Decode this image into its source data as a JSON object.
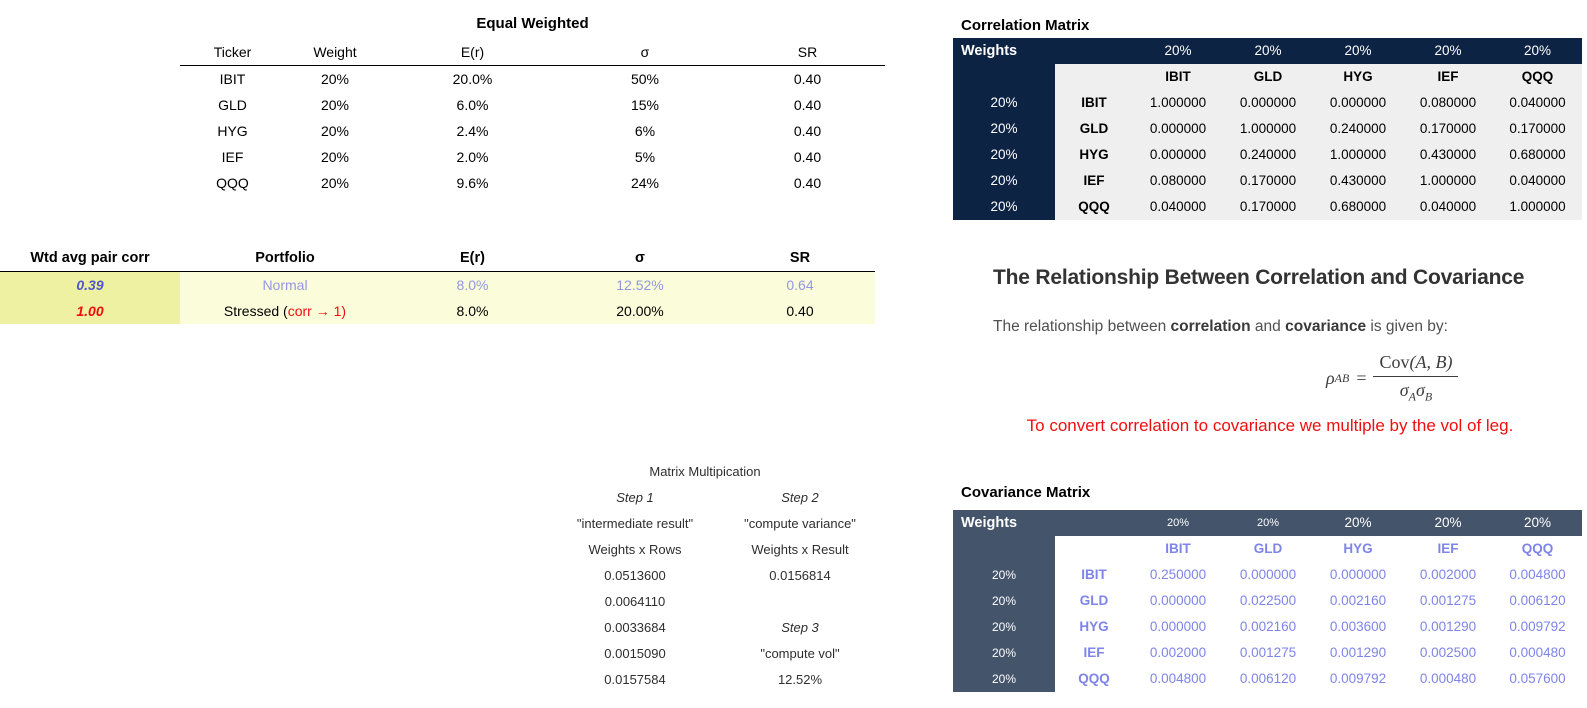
{
  "equal_weighted": {
    "title": "Equal Weighted",
    "headers": [
      "Ticker",
      "Weight",
      "E(r)",
      "σ",
      "SR"
    ],
    "rows": [
      [
        "IBIT",
        "20%",
        "20.0%",
        "50%",
        "0.40"
      ],
      [
        "GLD",
        "20%",
        "6.0%",
        "15%",
        "0.40"
      ],
      [
        "HYG",
        "20%",
        "2.4%",
        "6%",
        "0.40"
      ],
      [
        "IEF",
        "20%",
        "2.0%",
        "5%",
        "0.40"
      ],
      [
        "QQQ",
        "20%",
        "9.6%",
        "24%",
        "0.40"
      ]
    ]
  },
  "portfolio_comparison": {
    "headers": [
      "Wtd avg pair corr",
      "Portfolio",
      "E(r)",
      "σ",
      "SR"
    ],
    "normal": {
      "corr": "0.39",
      "name": "Normal",
      "er": "8.0%",
      "sigma": "12.52%",
      "sr": "0.64"
    },
    "stressed": {
      "corr": "1.00",
      "name_prefix": "Stressed (",
      "name_red": "corr → 1)",
      "er": "8.0%",
      "sigma": "20.00%",
      "sr": "0.40"
    }
  },
  "matrix_multiplication": {
    "title": "Matrix Multipication",
    "step1": {
      "label": "Step 1",
      "desc": "\"intermediate result\"",
      "formula": "Weights x Rows",
      "values": [
        "0.0513600",
        "0.0064110",
        "0.0033684",
        "0.0015090",
        "0.0157584"
      ]
    },
    "step2": {
      "label": "Step 2",
      "desc": "\"compute variance\"",
      "formula": "Weights x Result",
      "value": "0.0156814"
    },
    "step3": {
      "label": "Step 3",
      "desc": "\"compute vol\"",
      "value": "12.52%"
    }
  },
  "correlation_matrix": {
    "title": "Correlation Matrix",
    "weights_label": "Weights",
    "col_weights": [
      "20%",
      "20%",
      "20%",
      "20%",
      "20%"
    ],
    "tickers": [
      "IBIT",
      "GLD",
      "HYG",
      "IEF",
      "QQQ"
    ],
    "row_weights": [
      "20%",
      "20%",
      "20%",
      "20%",
      "20%"
    ],
    "values": [
      [
        "1.000000",
        "0.000000",
        "0.000000",
        "0.080000",
        "0.040000"
      ],
      [
        "0.000000",
        "1.000000",
        "0.240000",
        "0.170000",
        "0.170000"
      ],
      [
        "0.000000",
        "0.240000",
        "1.000000",
        "0.430000",
        "0.680000"
      ],
      [
        "0.080000",
        "0.170000",
        "0.430000",
        "1.000000",
        "0.040000"
      ],
      [
        "0.040000",
        "0.170000",
        "0.680000",
        "0.040000",
        "1.000000"
      ]
    ]
  },
  "covariance_matrix": {
    "title": "Covariance Matrix",
    "weights_label": "Weights",
    "col_weights": [
      "20%",
      "20%",
      "20%",
      "20%",
      "20%"
    ],
    "tickers": [
      "IBIT",
      "GLD",
      "HYG",
      "IEF",
      "QQQ"
    ],
    "row_weights": [
      "20%",
      "20%",
      "20%",
      "20%",
      "20%"
    ],
    "values": [
      [
        "0.250000",
        "0.000000",
        "0.000000",
        "0.002000",
        "0.004800"
      ],
      [
        "0.000000",
        "0.022500",
        "0.002160",
        "0.001275",
        "0.006120"
      ],
      [
        "0.000000",
        "0.002160",
        "0.003600",
        "0.001290",
        "0.009792"
      ],
      [
        "0.002000",
        "0.001275",
        "0.001290",
        "0.002500",
        "0.000480"
      ],
      [
        "0.004800",
        "0.006120",
        "0.009792",
        "0.000480",
        "0.057600"
      ]
    ]
  },
  "explainer": {
    "heading": "The Relationship Between Correlation and Covariance",
    "body_prefix": "The relationship between ",
    "bold1": "correlation",
    "body_mid": " and ",
    "bold2": "covariance",
    "body_suffix": " is given by:",
    "formula": {
      "rho": "ρ",
      "rho_sub": "AB",
      "equals": "=",
      "numerator_fn": "Cov",
      "numerator_args": "(A, B)",
      "sigma1": "σ",
      "sub_a": "A",
      "sigma2": "σ",
      "sub_b": "B"
    },
    "note": "To convert correlation to covariance we multiple by the vol of leg."
  },
  "colors": {
    "navy_header": "#0d2343",
    "slate_header": "#44546a",
    "correlation_body_gray": "#efefef",
    "covariance_periwinkle": "#7e84e8",
    "normal_row_periwinkle": "#9297e2",
    "wtd_corr_blue": "#5157c9",
    "alert_red": "#f10e0e",
    "row_pale_yellow": "#fbfcda",
    "corr_col_highlight": "#eef0a2"
  }
}
